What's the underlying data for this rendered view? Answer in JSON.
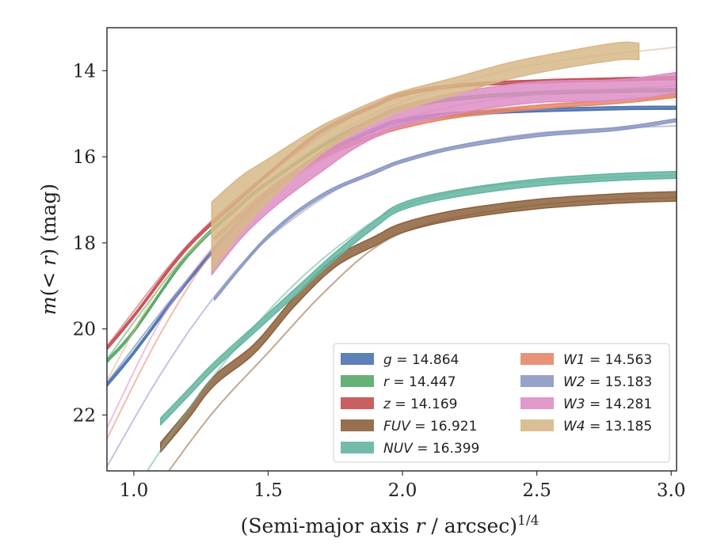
{
  "chart_data": {
    "type": "line",
    "title": "",
    "xlabel": "(Semi-major axis r / arcsec)^1/4",
    "ylabel": "m(< r) (mag)",
    "xlim": [
      0.9,
      3.02
    ],
    "ylim": [
      23.3,
      13.0
    ],
    "y_inverted": true,
    "grid": false,
    "legend_position": "lower-right",
    "x_ticks": [
      "1.0",
      "1.5",
      "2.0",
      "2.5",
      "3.0"
    ],
    "x_tick_values": [
      1.0,
      1.5,
      2.0,
      2.5,
      3.0
    ],
    "y_ticks": [
      "14",
      "16",
      "18",
      "20",
      "22"
    ],
    "y_tick_values": [
      14,
      16,
      18,
      20,
      22
    ],
    "series": [
      {
        "name": "g = 14.864",
        "label_var": "g",
        "label_value": "14.864",
        "color": "#4c72b0",
        "band_width": 0.07,
        "x": [
          0.9,
          1.0,
          1.2,
          1.4,
          1.5,
          1.7,
          1.9,
          2.0,
          2.2,
          2.5,
          2.8,
          3.02
        ],
        "y": [
          21.3,
          20.55,
          18.9,
          17.45,
          16.85,
          15.95,
          15.35,
          15.15,
          15.0,
          14.92,
          14.87,
          14.86
        ],
        "model_x": [
          0.9,
          1.2,
          1.5,
          1.9,
          2.3,
          2.7,
          3.02
        ],
        "model_y": [
          21.25,
          18.85,
          16.85,
          15.4,
          15.02,
          14.92,
          14.88
        ]
      },
      {
        "name": "r = 14.447",
        "label_var": "r",
        "label_value": "14.447",
        "color": "#55a868",
        "band_width": 0.07,
        "x": [
          0.9,
          1.0,
          1.2,
          1.4,
          1.5,
          1.7,
          1.9,
          2.0,
          2.2,
          2.5,
          2.8,
          3.02
        ],
        "y": [
          20.75,
          20.05,
          18.3,
          17.1,
          16.6,
          15.75,
          15.1,
          14.85,
          14.65,
          14.52,
          14.47,
          14.45
        ],
        "model_x": [
          0.9,
          1.2,
          1.5,
          1.9,
          2.3,
          2.7,
          3.02
        ],
        "model_y": [
          20.7,
          18.25,
          16.6,
          15.1,
          14.6,
          14.5,
          14.47
        ]
      },
      {
        "name": "z = 14.169",
        "label_var": "z",
        "label_value": "14.169",
        "color": "#c44e52",
        "band_width": 0.07,
        "x": [
          0.9,
          1.0,
          1.2,
          1.4,
          1.5,
          1.7,
          1.9,
          2.0,
          2.2,
          2.5,
          2.8,
          3.02
        ],
        "y": [
          20.45,
          19.7,
          18.1,
          16.95,
          16.4,
          15.4,
          14.8,
          14.55,
          14.35,
          14.25,
          14.2,
          14.17
        ],
        "model_x": [
          0.9,
          1.2,
          1.5,
          1.9,
          2.3,
          2.7,
          3.02
        ],
        "model_y": [
          20.4,
          18.05,
          16.4,
          14.8,
          14.3,
          14.22,
          14.2
        ]
      },
      {
        "name": "FUV = 16.921",
        "label_var": "FUV",
        "label_value": "16.921",
        "color": "#8c613c",
        "band_width": 0.22,
        "x": [
          1.1,
          1.2,
          1.3,
          1.45,
          1.6,
          1.75,
          1.9,
          2.0,
          2.2,
          2.5,
          2.8,
          3.02
        ],
        "y": [
          22.75,
          22.0,
          21.2,
          20.45,
          19.35,
          18.45,
          17.95,
          17.65,
          17.35,
          17.1,
          16.97,
          16.92
        ],
        "model_x": [
          1.13,
          1.3,
          1.5,
          1.7,
          1.9,
          2.1,
          2.4,
          2.7,
          3.02
        ],
        "model_y": [
          23.3,
          21.9,
          20.55,
          19.2,
          18.1,
          17.55,
          17.2,
          17.02,
          16.95
        ]
      },
      {
        "name": "NUV = 16.399",
        "label_var": "NUV",
        "label_value": "16.399",
        "color": "#64b5a0",
        "band_width": 0.16,
        "x": [
          1.1,
          1.2,
          1.3,
          1.45,
          1.6,
          1.75,
          1.9,
          2.0,
          2.2,
          2.5,
          2.8,
          3.02
        ],
        "y": [
          22.15,
          21.5,
          20.85,
          20.0,
          19.15,
          18.3,
          17.55,
          17.15,
          16.85,
          16.6,
          16.47,
          16.42
        ],
        "model_x": [
          1.05,
          1.2,
          1.4,
          1.6,
          1.8,
          2.0,
          2.3,
          2.7,
          3.02
        ],
        "model_y": [
          23.3,
          21.9,
          20.3,
          18.95,
          17.9,
          17.15,
          16.7,
          16.5,
          16.43
        ]
      },
      {
        "name": "W1 = 14.563",
        "label_var": "W1",
        "label_value": "14.563",
        "color": "#e5876a",
        "band_width": 0.08,
        "x": [
          1.3,
          1.5,
          1.7,
          1.9,
          2.0,
          2.2,
          2.5,
          2.8,
          3.02
        ],
        "y": [
          17.9,
          16.8,
          16.0,
          15.5,
          15.3,
          15.05,
          14.85,
          14.72,
          14.58
        ],
        "model_x": [
          0.9,
          1.1,
          1.3,
          1.5,
          1.8,
          2.1,
          2.5,
          3.02
        ],
        "model_y": [
          22.55,
          20.1,
          18.15,
          16.9,
          15.75,
          15.1,
          14.8,
          14.6
        ]
      },
      {
        "name": "W2 = 15.183",
        "label_var": "W2",
        "label_value": "15.183",
        "color": "#8c98c3",
        "band_width": 0.07,
        "x": [
          1.3,
          1.5,
          1.7,
          1.9,
          2.0,
          2.2,
          2.5,
          2.8,
          3.02
        ],
        "y": [
          19.3,
          17.85,
          16.9,
          16.35,
          16.1,
          15.78,
          15.5,
          15.35,
          15.15
        ],
        "model_x": [
          0.9,
          1.1,
          1.3,
          1.5,
          1.8,
          2.1,
          2.5,
          3.02
        ],
        "model_y": [
          23.2,
          21.05,
          19.25,
          17.9,
          16.6,
          15.9,
          15.45,
          15.28
        ]
      },
      {
        "name": "W3 = 14.281",
        "label_var": "W3",
        "label_value": "14.281",
        "color": "#dd8ec4",
        "band_width": 0.48,
        "x": [
          1.29,
          1.4,
          1.5,
          1.6,
          1.7,
          1.8,
          1.9,
          2.0,
          2.2,
          2.5,
          2.8,
          3.02
        ],
        "y": [
          18.5,
          17.65,
          17.05,
          16.55,
          16.1,
          15.65,
          15.3,
          15.05,
          14.75,
          14.5,
          14.45,
          14.28
        ],
        "model_x": [
          0.9,
          1.1,
          1.3,
          1.5,
          1.8,
          2.1,
          2.5,
          3.02
        ],
        "model_y": [
          22.3,
          19.8,
          18.05,
          16.75,
          15.6,
          14.95,
          14.55,
          14.35
        ]
      },
      {
        "name": "W4 = 13.185",
        "label_var": "W4",
        "label_value": "13.185",
        "color": "#d7b888",
        "band_width": 1.6,
        "x": [
          1.29,
          1.4,
          1.5,
          1.6,
          1.7,
          1.8,
          1.9,
          2.0,
          2.2,
          2.4,
          2.6,
          2.8,
          2.88
        ],
        "y": [
          17.85,
          17.1,
          16.55,
          16.05,
          15.6,
          15.25,
          14.95,
          14.7,
          14.35,
          14.0,
          13.75,
          13.55,
          13.55
        ],
        "band_widths": [
          1.6,
          1.3,
          1.0,
          0.8,
          0.65,
          0.55,
          0.5,
          0.45,
          0.4,
          0.38,
          0.38,
          0.4,
          0.38
        ],
        "model_x": [
          0.9,
          1.1,
          1.3,
          1.5,
          1.8,
          2.1,
          2.5,
          3.02
        ],
        "model_y": [
          21.2,
          19.0,
          17.65,
          16.6,
          15.3,
          14.5,
          13.85,
          13.45
        ]
      }
    ]
  }
}
